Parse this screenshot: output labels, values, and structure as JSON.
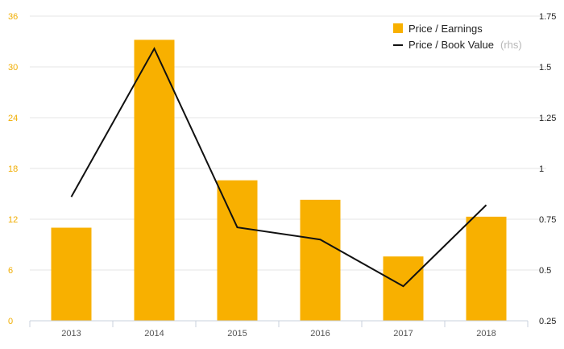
{
  "chart_data": {
    "type": "bar",
    "categories": [
      "2013",
      "2014",
      "2015",
      "2016",
      "2017",
      "2018"
    ],
    "series": [
      {
        "name": "Price / Earnings",
        "type": "bar",
        "axis": "left",
        "values": [
          11.0,
          33.2,
          16.6,
          14.3,
          7.6,
          12.3
        ]
      },
      {
        "name": "Price / Book Value",
        "name_suffix": "(rhs)",
        "type": "line",
        "axis": "right",
        "values": [
          0.86,
          1.59,
          0.71,
          0.65,
          0.42,
          0.82
        ]
      }
    ],
    "y_left": {
      "lim": [
        0,
        36
      ],
      "ticks": [
        "0",
        "6",
        "12",
        "18",
        "24",
        "30",
        "36"
      ]
    },
    "y_right": {
      "lim": [
        0.25,
        1.75
      ],
      "ticks": [
        "0.25",
        "0.5",
        "0.75",
        "1",
        "1.25",
        "1.5",
        "1.75"
      ]
    },
    "grid": true,
    "legend_position": "top-right",
    "colors": {
      "bar": "#f8b000",
      "line": "#111111",
      "left_tick": "#f0ad00",
      "grid": "#e6e6e6"
    }
  }
}
